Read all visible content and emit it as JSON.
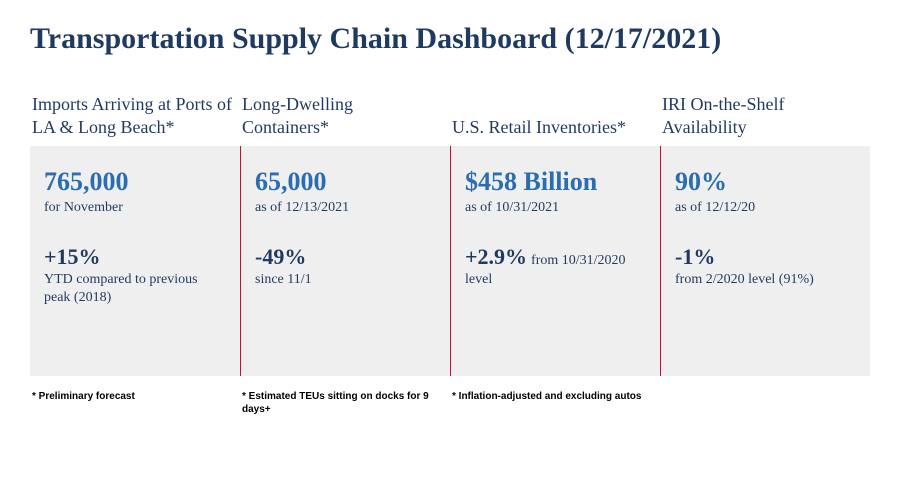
{
  "title": "Transportation Supply Chain Dashboard (12/17/2021)",
  "colors": {
    "text_primary": "#1f3a5f",
    "accent_blue": "#2a6db0",
    "panel_bg": "#efefef",
    "divider": "#c8102e",
    "background": "#ffffff",
    "footnote": "#000000"
  },
  "typography": {
    "title_fontsize": 30,
    "header_fontsize": 18,
    "big_value_fontsize": 26,
    "delta_value_fontsize": 22,
    "sub_fontsize": 14,
    "footnote_fontsize": 10,
    "family": "Georgia, serif"
  },
  "columns": [
    {
      "header": "Imports Arriving at Ports of LA & Long Beach*",
      "value": "765,000",
      "value_sub": "for November",
      "delta": "+15%",
      "delta_sub": "YTD compared to previous peak (2018)",
      "footnote": "* Preliminary forecast"
    },
    {
      "header": "Long-Dwelling Containers*",
      "value": "65,000",
      "value_sub": "as of 12/13/2021",
      "delta": "-49%",
      "delta_sub": "since 11/1",
      "footnote": "* Estimated TEUs sitting on docks for 9 days+"
    },
    {
      "header": "U.S. Retail Inventories*",
      "value": "$458 Billion",
      "value_sub": "as of 10/31/2021",
      "delta": "+2.9%",
      "delta_sub": "from 10/31/2020 level",
      "delta_inline": true,
      "footnote": "* Inflation-adjusted and excluding autos"
    },
    {
      "header": "IRI On-the-Shelf Availability",
      "value": "90%",
      "value_sub": "as of 12/12/20",
      "delta": "-1%",
      "delta_sub": "from 2/2020 level (91%)",
      "footnote": ""
    }
  ]
}
